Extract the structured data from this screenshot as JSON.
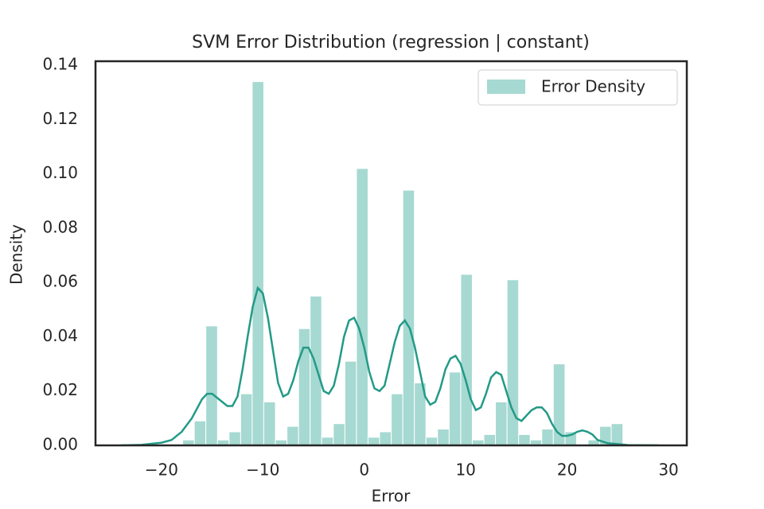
{
  "chart_data": {
    "type": "histogram",
    "title": "SVM Error Distribution (regression | constant)",
    "x_label": "Error",
    "y_label": "Density",
    "name": "Error Density",
    "color": "#a6d9d1",
    "bins": [
      -17.9,
      -16.76,
      -15.62,
      -14.47,
      -13.33,
      -12.19,
      -11.05,
      -9.91,
      -8.76,
      -7.62,
      -6.48,
      -5.34,
      -4.2,
      -3.05,
      -1.91,
      -0.77,
      0.37,
      1.51,
      2.66,
      3.8,
      4.94,
      6.08,
      7.22,
      8.37,
      9.51,
      10.65,
      11.79,
      12.93,
      14.08,
      15.22,
      16.36,
      17.5,
      18.64,
      19.79,
      20.93,
      22.07,
      23.21,
      24.35,
      25.5
    ],
    "values": [
      0.002,
      0.009,
      0.044,
      0.002,
      0.005,
      0.019,
      0.134,
      0.016,
      0.002,
      0.007,
      0.043,
      0.055,
      0.003,
      0.008,
      0.031,
      0.102,
      0.003,
      0.005,
      0.019,
      0.094,
      0.023,
      0.003,
      0.006,
      0.027,
      0.063,
      0.002,
      0.004,
      0.016,
      0.061,
      0.004,
      0.002,
      0.006,
      0.03,
      0.005,
      0,
      0.002,
      0.007,
      0.008
    ],
    "kde": {
      "color": "#239a87",
      "x": [
        -24,
        -22,
        -20,
        -19,
        -18,
        -17,
        -16,
        -15.5,
        -15,
        -14,
        -13.5,
        -13,
        -12.5,
        -12,
        -11.5,
        -11,
        -10.5,
        -10,
        -9.5,
        -9,
        -8.5,
        -8,
        -7.5,
        -7,
        -6.5,
        -6,
        -5.5,
        -5,
        -4.5,
        -4,
        -3.5,
        -3,
        -2.5,
        -2,
        -1.5,
        -1,
        -0.5,
        0,
        0.5,
        1,
        1.5,
        2,
        2.5,
        3,
        3.5,
        4,
        4.5,
        5,
        5.5,
        6,
        6.5,
        7,
        7.5,
        8,
        8.5,
        9,
        9.5,
        10,
        10.5,
        11,
        11.5,
        12,
        12.5,
        13,
        13.5,
        14,
        14.5,
        15,
        15.5,
        16,
        16.5,
        17,
        17.5,
        18,
        18.5,
        19,
        19.5,
        20,
        20.5,
        21,
        21.5,
        22,
        22.5,
        23,
        24,
        26,
        29
      ],
      "values": [
        0,
        0.0002,
        0.001,
        0.002,
        0.005,
        0.01,
        0.017,
        0.019,
        0.019,
        0.016,
        0.0145,
        0.0145,
        0.018,
        0.028,
        0.04,
        0.051,
        0.058,
        0.056,
        0.047,
        0.035,
        0.023,
        0.018,
        0.019,
        0.024,
        0.031,
        0.036,
        0.036,
        0.032,
        0.026,
        0.02,
        0.019,
        0.022,
        0.03,
        0.04,
        0.046,
        0.047,
        0.043,
        0.036,
        0.027,
        0.021,
        0.02,
        0.022,
        0.03,
        0.038,
        0.044,
        0.046,
        0.043,
        0.036,
        0.027,
        0.018,
        0.015,
        0.016,
        0.021,
        0.028,
        0.032,
        0.033,
        0.03,
        0.024,
        0.017,
        0.013,
        0.014,
        0.019,
        0.025,
        0.027,
        0.026,
        0.02,
        0.014,
        0.01,
        0.009,
        0.011,
        0.013,
        0.014,
        0.014,
        0.012,
        0.008,
        0.005,
        0.0035,
        0.0035,
        0.004,
        0.005,
        0.0055,
        0.005,
        0.004,
        0.002,
        0.0008,
        0.0001,
        0
      ]
    },
    "xlim": [
      -26.5,
      31.8
    ],
    "ylim": [
      0,
      0.1415
    ],
    "xticks": [
      {
        "value": -20,
        "label": "−20"
      },
      {
        "value": -10,
        "label": "−10"
      },
      0,
      10,
      20,
      30
    ],
    "yticks": [
      {
        "value": 0,
        "label": "0.00"
      },
      {
        "value": 0.02,
        "label": "0.02"
      },
      {
        "value": 0.04,
        "label": "0.04"
      },
      {
        "value": 0.06,
        "label": "0.06"
      },
      {
        "value": 0.08,
        "label": "0.08"
      },
      {
        "value": 0.1,
        "label": "0.10"
      },
      {
        "value": 0.12,
        "label": "0.12"
      },
      {
        "value": 0.14,
        "label": "0.14"
      }
    ],
    "legend": "upper right",
    "grid": false
  }
}
